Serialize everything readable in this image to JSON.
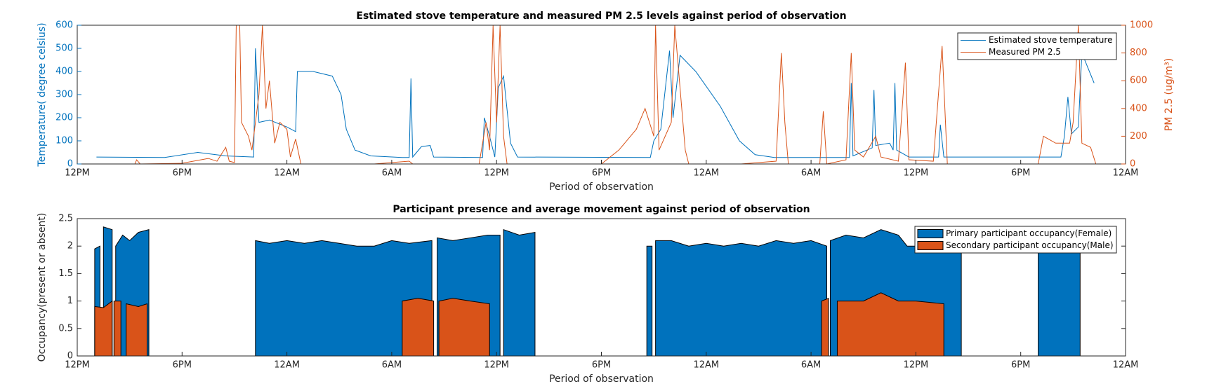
{
  "chart_data": [
    {
      "type": "line",
      "title": "Estimated stove temperature and measured PM 2.5 levels against period of observation",
      "x_label": "Period of observation",
      "y_label": "Temperature( degree celsius)",
      "y2_label": "PM 2.5 (ug/m³)",
      "xlim": [
        0,
        60
      ],
      "xticks": [
        {
          "value": 0,
          "label": "12PM"
        },
        {
          "value": 6,
          "label": "6PM"
        },
        {
          "value": 12,
          "label": "12AM"
        },
        {
          "value": 18,
          "label": "6AM"
        },
        {
          "value": 24,
          "label": "12PM"
        },
        {
          "value": 30,
          "label": "6PM"
        },
        {
          "value": 36,
          "label": "12AM"
        },
        {
          "value": 42,
          "label": "6AM"
        },
        {
          "value": 48,
          "label": "12PM"
        },
        {
          "value": 54,
          "label": "6PM"
        },
        {
          "value": 60,
          "label": "12AM"
        }
      ],
      "ylim": [
        0,
        600
      ],
      "yticks": [
        0,
        100,
        200,
        300,
        400,
        500,
        600
      ],
      "y2lim": [
        0,
        1000
      ],
      "y2ticks": [
        0,
        200,
        400,
        600,
        800,
        1000
      ],
      "grid": false,
      "legend": "northeast",
      "series": [
        {
          "name": "Estimated stove temperature",
          "color": "#0072BD",
          "x": [
            1.1,
            5,
            6.9,
            8.5,
            10.1,
            10.2,
            10.4,
            11,
            12,
            12.5,
            12.6,
            13.5,
            14.6,
            15.1,
            15.4,
            15.9,
            16.8,
            18.6,
            19.0,
            19.1,
            19.2,
            19.7,
            20.2,
            20.4,
            23.2,
            23.3,
            23.6,
            23.9,
            24.1,
            24.4,
            24.8,
            25.2,
            32.8,
            33,
            33.4,
            33.9,
            34.1,
            34.5,
            35.4,
            36.8,
            37.9,
            38.8,
            39.9,
            44.2,
            44.3,
            44.4,
            45.2,
            45.5,
            45.6,
            45.7,
            46.5,
            46.7,
            46.8,
            46.9,
            47.6,
            49.3,
            49.4,
            49.6,
            56.3,
            56.5,
            56.7,
            56.9,
            57.3,
            57.5,
            58.2
          ],
          "values": [
            30,
            28,
            50,
            35,
            30,
            500,
            180,
            190,
            160,
            140,
            400,
            400,
            380,
            300,
            150,
            60,
            35,
            28,
            28,
            370,
            30,
            75,
            80,
            30,
            28,
            200,
            120,
            30,
            330,
            380,
            90,
            30,
            28,
            100,
            150,
            490,
            200,
            470,
            400,
            250,
            100,
            40,
            28,
            28,
            350,
            35,
            60,
            70,
            320,
            80,
            90,
            60,
            350,
            60,
            30,
            30,
            170,
            30,
            30,
            120,
            290,
            130,
            160,
            480,
            350
          ]
        },
        {
          "name": "Measured PM 2.5",
          "color": "#D95319",
          "axis": "y2",
          "x": [
            0,
            3.3,
            3.4,
            3.6,
            6,
            7.5,
            8,
            8.5,
            8.7,
            9,
            9.1,
            9.3,
            9.4,
            9.8,
            10,
            10.4,
            10.6,
            10.8,
            11,
            11.3,
            11.6,
            12,
            12.2,
            12.5,
            12.8,
            17,
            18,
            19,
            19.2,
            23,
            23.4,
            23.6,
            23.8,
            24,
            24.2,
            24.4,
            24.6,
            30,
            31,
            32,
            32.5,
            33,
            33.1,
            33.3,
            34,
            34.2,
            34.5,
            34.8,
            35,
            38,
            40,
            40.3,
            40.5,
            40.7,
            42.5,
            42.7,
            42.9,
            44,
            44.3,
            44.5,
            45,
            45.7,
            46,
            47,
            47.4,
            47.6,
            49,
            49.5,
            49.8,
            55,
            55.3,
            56,
            56.8,
            57,
            57.3,
            57.5,
            58,
            58.3
          ],
          "values": [
            0,
            0,
            30,
            0,
            5,
            40,
            20,
            120,
            20,
            10,
            1000,
            1000,
            300,
            200,
            100,
            500,
            1000,
            400,
            600,
            150,
            300,
            250,
            50,
            180,
            0,
            0,
            10,
            20,
            0,
            0,
            300,
            100,
            1000,
            300,
            1000,
            200,
            0,
            0,
            100,
            250,
            400,
            200,
            1000,
            100,
            300,
            1000,
            550,
            100,
            0,
            0,
            20,
            800,
            300,
            0,
            0,
            380,
            0,
            30,
            800,
            100,
            50,
            200,
            50,
            20,
            730,
            30,
            20,
            850,
            0,
            0,
            200,
            150,
            150,
            300,
            1000,
            150,
            120,
            0
          ]
        }
      ]
    },
    {
      "type": "area",
      "title": "Participant presence and average movement against period of observation",
      "x_label": "Period of observation",
      "y_label": "Occupancy(present or absent)",
      "xlim": [
        0,
        60
      ],
      "xticks": [
        {
          "value": 0,
          "label": "12PM"
        },
        {
          "value": 6,
          "label": "6PM"
        },
        {
          "value": 12,
          "label": "12AM"
        },
        {
          "value": 18,
          "label": "6AM"
        },
        {
          "value": 24,
          "label": "12PM"
        },
        {
          "value": 30,
          "label": "6PM"
        },
        {
          "value": 36,
          "label": "12AM"
        },
        {
          "value": 42,
          "label": "6AM"
        },
        {
          "value": 48,
          "label": "12PM"
        },
        {
          "value": 54,
          "label": "6PM"
        },
        {
          "value": 60,
          "label": "12AM"
        }
      ],
      "ylim": [
        0,
        2.5
      ],
      "yticks": [
        0,
        0.5,
        1,
        1.5,
        2,
        2.5
      ],
      "grid": false,
      "legend": "northeast",
      "series": [
        {
          "name": "Primary participant occupancy(Female)",
          "color": "#0072BD",
          "x": [
            1.0,
            1.3,
            1.4,
            1.5,
            2.0,
            2.1,
            2.2,
            2.6,
            3.0,
            3.5,
            4.1,
            7,
            10.2,
            11,
            12,
            13,
            14,
            15,
            16,
            17,
            18,
            19,
            20.3,
            20.4,
            20.6,
            21.5,
            22.5,
            23.5,
            24.2,
            24.3,
            24.4,
            25.3,
            26.2,
            30,
            32.6,
            32.9,
            33,
            33.1,
            34,
            35,
            36,
            37,
            38,
            39,
            40,
            41,
            42,
            42.9,
            42.95,
            43.1,
            44,
            45,
            46,
            47,
            47.5,
            48.5,
            49.5,
            50.6,
            53,
            55,
            56,
            57.4
          ],
          "values": [
            1.95,
            2.0,
            null,
            2.35,
            2.3,
            null,
            2.0,
            2.2,
            2.1,
            2.25,
            2.3,
            null,
            2.1,
            2.05,
            2.1,
            2.05,
            2.1,
            2.05,
            2.0,
            2.0,
            2.1,
            2.05,
            2.1,
            null,
            2.15,
            2.1,
            2.15,
            2.2,
            2.2,
            null,
            2.3,
            2.2,
            2.25,
            null,
            2.0,
            2.0,
            null,
            2.1,
            2.1,
            2.0,
            2.05,
            2.0,
            2.05,
            2.0,
            2.1,
            2.05,
            2.1,
            2.0,
            null,
            2.1,
            2.2,
            2.15,
            2.3,
            2.2,
            2.0,
            2.0,
            2.0,
            2.0,
            null,
            2.0,
            2.0,
            2.0
          ]
        },
        {
          "name": "Secondary participant occupancy(Male)",
          "color": "#D95319",
          "x": [
            1.0,
            1.5,
            2.0,
            2.05,
            2.1,
            2.5,
            2.6,
            2.8,
            3.5,
            4.0,
            10,
            18.6,
            19.5,
            20.4,
            20.5,
            20.7,
            21.5,
            22.5,
            23.6,
            30,
            42.6,
            43.0,
            43.2,
            43.5,
            45,
            46,
            47,
            48,
            49.6
          ],
          "values": [
            0.9,
            0.88,
            1.0,
            null,
            1.0,
            1.0,
            null,
            0.95,
            0.9,
            0.95,
            null,
            1.0,
            1.05,
            1.0,
            null,
            1.0,
            1.05,
            1.0,
            0.95,
            null,
            1.0,
            1.05,
            null,
            1.0,
            1.0,
            1.15,
            1.0,
            1.0,
            0.95
          ]
        }
      ]
    }
  ]
}
